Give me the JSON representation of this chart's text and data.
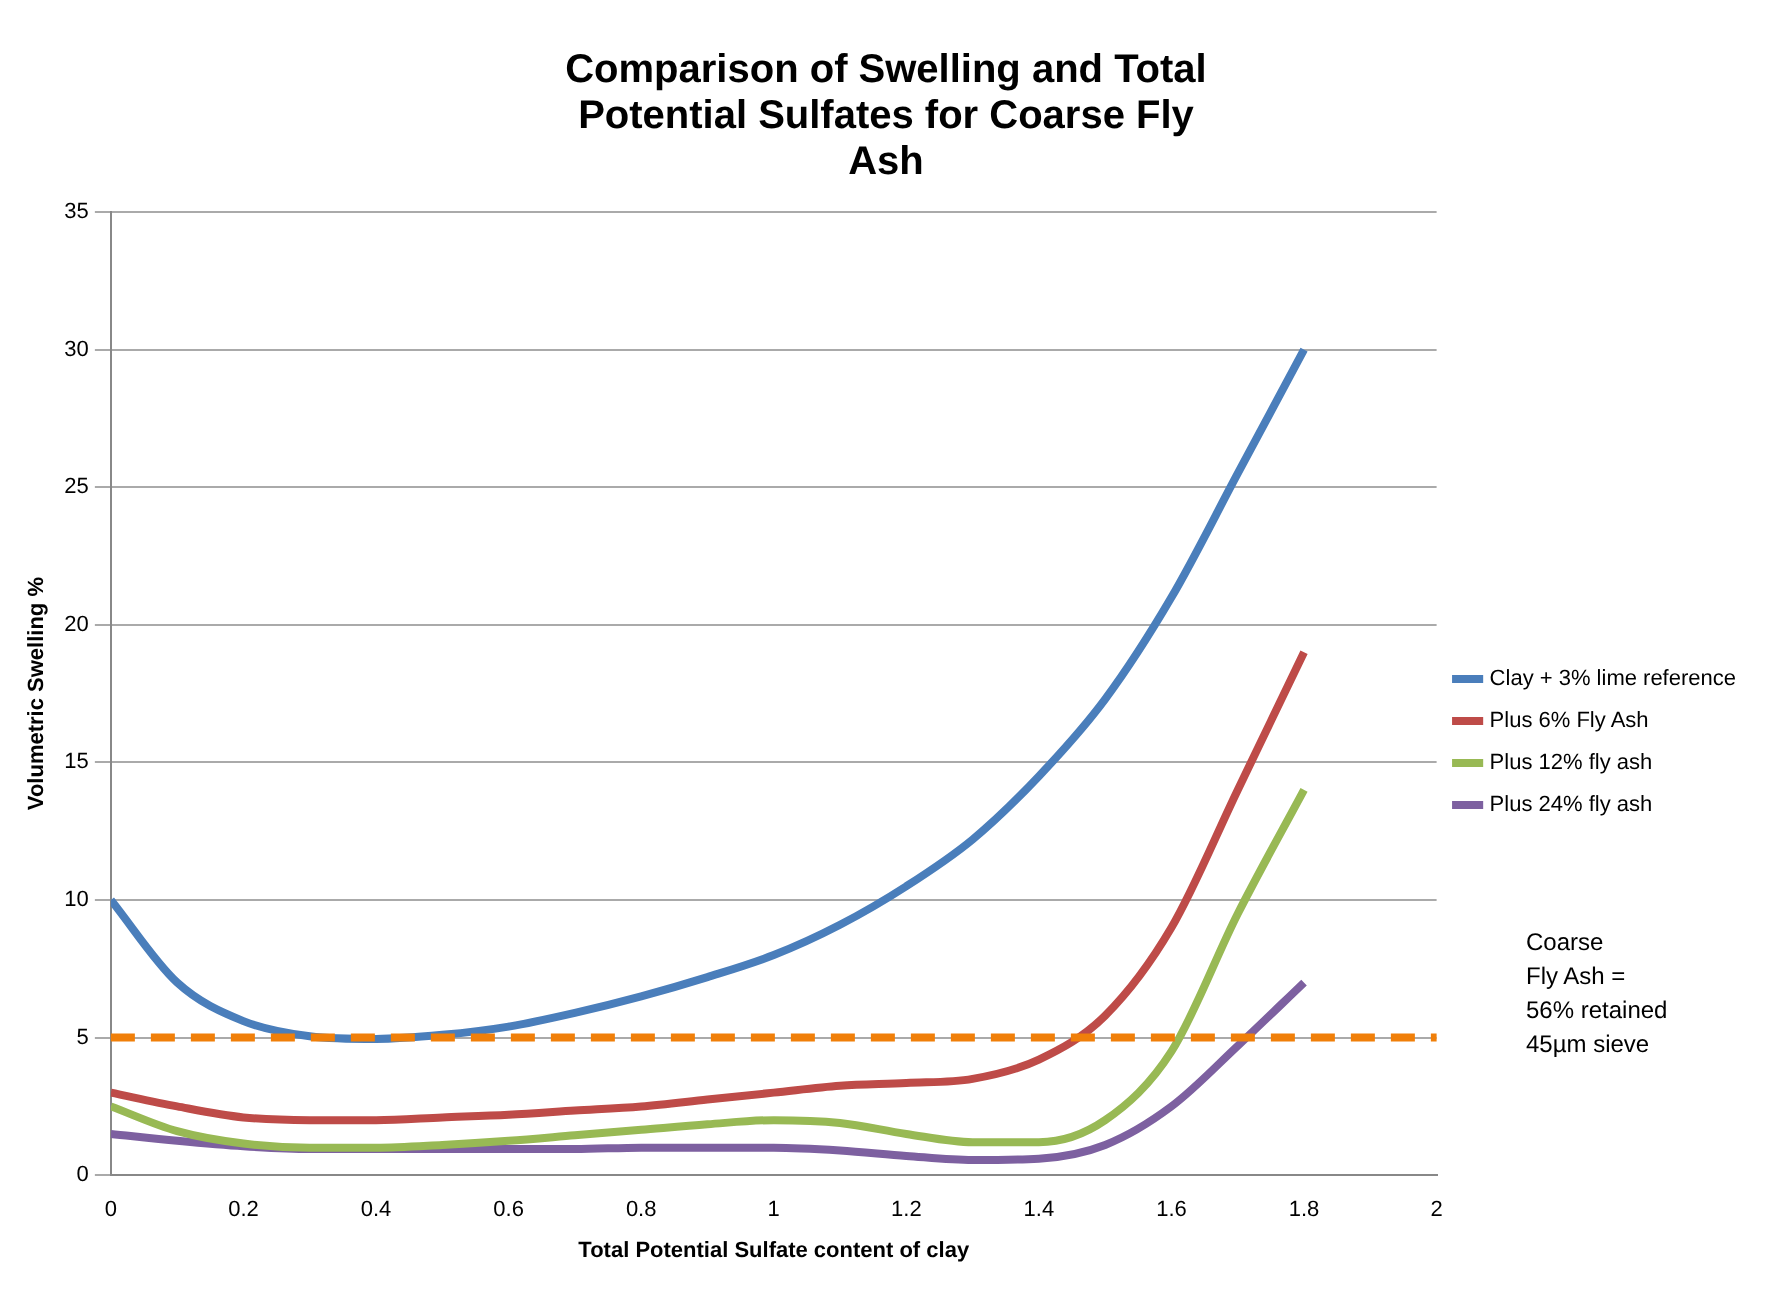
{
  "chart_data": {
    "type": "line",
    "title": "Comparison of Swelling and Total Potential Sulfates for Coarse Fly Ash",
    "xlabel": "Total Potential Sulfate content of clay",
    "ylabel": "Volumetric Swelling %",
    "x": [
      0,
      0.1,
      0.2,
      0.3,
      0.4,
      0.5,
      0.6,
      0.7,
      0.8,
      0.9,
      1.0,
      1.1,
      1.2,
      1.3,
      1.4,
      1.5,
      1.6,
      1.7,
      1.8
    ],
    "series": [
      {
        "name": "Clay + 3% lime reference",
        "color": "#4a7ebb",
        "values": [
          10,
          7,
          5.6,
          5.05,
          4.95,
          5.1,
          5.4,
          5.9,
          6.5,
          7.2,
          8.0,
          9.1,
          10.5,
          12.2,
          14.5,
          17.3,
          21,
          25.5,
          30
        ]
      },
      {
        "name": "Plus 6% Fly Ash",
        "color": "#be4b48",
        "values": [
          3,
          2.5,
          2.1,
          2.0,
          2.0,
          2.1,
          2.2,
          2.35,
          2.5,
          2.75,
          3.0,
          3.25,
          3.35,
          3.5,
          4.2,
          5.8,
          9,
          14,
          19
        ]
      },
      {
        "name": "Plus 12% fly ash",
        "color": "#98b954",
        "values": [
          2.5,
          1.6,
          1.15,
          1.0,
          1.0,
          1.1,
          1.25,
          1.45,
          1.65,
          1.85,
          2.0,
          1.9,
          1.5,
          1.2,
          1.2,
          2.0,
          4.5,
          9.5,
          14
        ]
      },
      {
        "name": "Plus 24% fly ash",
        "color": "#7d60a0",
        "values": [
          1.5,
          1.25,
          1.05,
          0.95,
          0.95,
          0.95,
          0.95,
          0.95,
          1.0,
          1.0,
          1.0,
          0.9,
          0.7,
          0.55,
          0.6,
          1.1,
          2.5,
          4.7,
          7
        ]
      }
    ],
    "ref_lines": [
      {
        "axis": "y",
        "value": 5,
        "color": "#f07f09",
        "line_style": "dashed"
      }
    ],
    "annotations": [
      "Coarse\nFly Ash =\n56% retained\n45µm sieve"
    ],
    "xlim": [
      0,
      2
    ],
    "xticks": [
      0,
      0.2,
      0.4,
      0.6,
      0.8,
      1,
      1.2,
      1.4,
      1.6,
      1.8,
      2
    ],
    "ylim": [
      0,
      35
    ],
    "yticks": [
      0,
      5,
      10,
      15,
      20,
      25,
      30,
      35
    ],
    "grid": "y",
    "legend": "right",
    "marker": "none",
    "line_style": "solid"
  }
}
